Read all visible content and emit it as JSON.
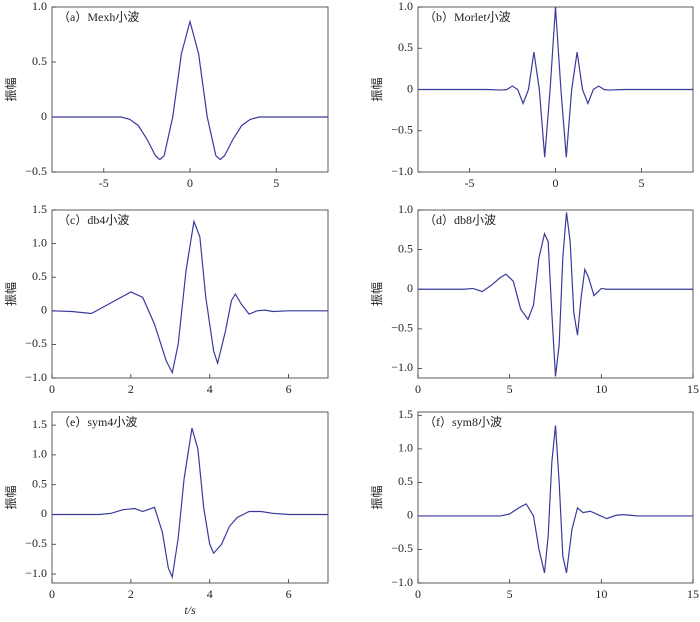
{
  "chart_data": [
    {
      "type": "line",
      "title": "（a）Mexh小波",
      "ylabel": "振幅",
      "xlim": [
        -8,
        8
      ],
      "xticks": [
        -5,
        0,
        5
      ],
      "ylim": [
        -0.5,
        1
      ],
      "yticks": [
        {
          "value": -0.5,
          "label": "−0.5"
        },
        0,
        0.5,
        {
          "value": 1,
          "label": "1.0"
        }
      ],
      "x": [
        -8,
        -4,
        -3.5,
        -3,
        -2.5,
        -2,
        -1.75,
        -1.5,
        -1,
        -0.5,
        0,
        0.5,
        1,
        1.5,
        1.75,
        2,
        2.5,
        3,
        3.5,
        4,
        8
      ],
      "series": [
        {
          "color": "#3a3a9c",
          "values": [
            0,
            0,
            -0.021,
            -0.077,
            -0.2,
            -0.352,
            -0.387,
            -0.352,
            0,
            0.574,
            0.867,
            0.574,
            0,
            -0.352,
            -0.387,
            -0.352,
            -0.2,
            -0.077,
            -0.021,
            0,
            0
          ]
        }
      ]
    },
    {
      "type": "line",
      "title": "（b）Morlet小波",
      "ylabel": "振幅",
      "xlim": [
        -8,
        8
      ],
      "xticks": [
        -5,
        0,
        5
      ],
      "ylim": [
        -1,
        1
      ],
      "yticks": [
        {
          "value": -1,
          "label": "−1.0"
        },
        {
          "value": -0.5,
          "label": "−0.5"
        },
        0,
        0.5,
        {
          "value": 1,
          "label": "1.0"
        }
      ],
      "x": [
        -8,
        -4,
        -3.14,
        -2.827,
        -2.513,
        -2.199,
        -1.885,
        -1.571,
        -1.257,
        -0.942,
        -0.628,
        -0.314,
        0,
        0.314,
        0.628,
        0.942,
        1.257,
        1.571,
        1.885,
        2.199,
        2.513,
        2.827,
        3.14,
        4,
        8
      ],
      "series": [
        {
          "color": "#3a3a9c",
          "values": [
            0,
            0,
            -0.007,
            0,
            0.042,
            0,
            -0.169,
            0,
            0.454,
            0,
            -0.821,
            0,
            1,
            0,
            -0.821,
            0,
            0.454,
            0,
            -0.169,
            0,
            0.042,
            0,
            -0.007,
            0,
            0
          ]
        }
      ]
    },
    {
      "type": "line",
      "title": "（c）db4小波",
      "ylabel": "振幅",
      "xlim": [
        0,
        7
      ],
      "xticks": [
        0,
        2,
        4,
        6
      ],
      "ylim": [
        -1,
        1.5
      ],
      "yticks": [
        {
          "value": -1,
          "label": "−1.0"
        },
        {
          "value": -0.5,
          "label": "−0.5"
        },
        0,
        0.5,
        {
          "value": 1,
          "label": "1.0"
        },
        1.5
      ],
      "x": [
        0,
        0.5,
        1,
        1.5,
        2,
        2.3,
        2.6,
        2.9,
        3.05,
        3.2,
        3.4,
        3.6,
        3.75,
        3.9,
        4.1,
        4.2,
        4.4,
        4.55,
        4.65,
        4.8,
        5,
        5.2,
        5.4,
        5.6,
        6,
        7
      ],
      "series": [
        {
          "color": "#3a3a9c",
          "values": [
            0,
            -0.01,
            -0.04,
            0.12,
            0.28,
            0.2,
            -0.2,
            -0.75,
            -0.92,
            -0.5,
            0.6,
            1.33,
            1.1,
            0.2,
            -0.6,
            -0.78,
            -0.3,
            0.15,
            0.25,
            0.1,
            -0.05,
            0,
            0.01,
            -0.01,
            0,
            0
          ]
        }
      ]
    },
    {
      "type": "line",
      "title": "（d）db8小波",
      "ylabel": "振幅",
      "xlim": [
        0,
        15
      ],
      "xticks": [
        0,
        5,
        10,
        15
      ],
      "ylim": [
        -1.12,
        1
      ],
      "yticks": [
        {
          "value": -1,
          "label": "−1.0"
        },
        {
          "value": -0.5,
          "label": "−0.5"
        },
        0,
        0.5,
        {
          "value": 1,
          "label": "1.0"
        }
      ],
      "x": [
        0,
        2.5,
        3,
        3.5,
        4,
        4.5,
        4.8,
        5.2,
        5.6,
        6,
        6.3,
        6.6,
        6.9,
        7.1,
        7.3,
        7.5,
        7.7,
        7.9,
        8.1,
        8.3,
        8.5,
        8.7,
        8.9,
        9.1,
        9.3,
        9.6,
        10,
        10.3,
        15
      ],
      "series": [
        {
          "color": "#3a3a9c",
          "values": [
            0,
            0,
            0.01,
            -0.03,
            0.05,
            0.15,
            0.19,
            0.1,
            -0.25,
            -0.38,
            -0.2,
            0.4,
            0.7,
            0.6,
            -0.3,
            -1.1,
            -0.7,
            0.4,
            0.97,
            0.6,
            -0.3,
            -0.58,
            -0.1,
            0.25,
            0.15,
            -0.08,
            0.01,
            0,
            0
          ]
        }
      ]
    },
    {
      "type": "line",
      "title": "（e）sym4小波",
      "ylabel": "振幅",
      "xlabel": "t/s",
      "xlim": [
        0,
        7
      ],
      "xticks": [
        0,
        2,
        4,
        6
      ],
      "ylim": [
        -1.15,
        1.72
      ],
      "yticks": [
        {
          "value": -1,
          "label": "−1.0"
        },
        {
          "value": -0.5,
          "label": "−0.5"
        },
        0,
        0.5,
        {
          "value": 1,
          "label": "1.0"
        },
        1.5
      ],
      "x": [
        0,
        1.2,
        1.5,
        1.8,
        2.1,
        2.3,
        2.6,
        2.8,
        2.95,
        3.05,
        3.2,
        3.35,
        3.55,
        3.7,
        3.85,
        4,
        4.1,
        4.3,
        4.5,
        4.7,
        5,
        5.3,
        5.6,
        6,
        7
      ],
      "series": [
        {
          "color": "#3a3a9c",
          "values": [
            0,
            0,
            0.02,
            0.08,
            0.1,
            0.05,
            0.12,
            -0.3,
            -0.9,
            -1.05,
            -0.4,
            0.6,
            1.45,
            1.1,
            0.1,
            -0.5,
            -0.65,
            -0.5,
            -0.2,
            -0.05,
            0.05,
            0.05,
            0.02,
            0,
            0
          ]
        }
      ]
    },
    {
      "type": "line",
      "title": "（f）sym8小波",
      "ylabel": "振幅",
      "xlim": [
        0,
        15
      ],
      "xticks": [
        0,
        5,
        10,
        15
      ],
      "ylim": [
        -1,
        1.55
      ],
      "yticks": [
        {
          "value": -1,
          "label": "−1.0"
        },
        {
          "value": -0.5,
          "label": "−0.5"
        },
        0,
        0.5,
        {
          "value": 1,
          "label": "1.0"
        },
        1.5
      ],
      "x": [
        0,
        4.5,
        5,
        5.5,
        5.9,
        6.3,
        6.6,
        6.9,
        7.1,
        7.3,
        7.5,
        7.7,
        7.9,
        8.1,
        8.4,
        8.7,
        9,
        9.4,
        9.8,
        10.3,
        10.8,
        11.2,
        12,
        15
      ],
      "series": [
        {
          "color": "#3a3a9c",
          "values": [
            0,
            0,
            0.03,
            0.12,
            0.18,
            0,
            -0.5,
            -0.85,
            -0.3,
            0.8,
            1.35,
            0.5,
            -0.6,
            -0.85,
            -0.2,
            0.12,
            0.05,
            0.07,
            0.02,
            -0.04,
            0.01,
            0.02,
            0,
            0
          ]
        }
      ]
    }
  ]
}
